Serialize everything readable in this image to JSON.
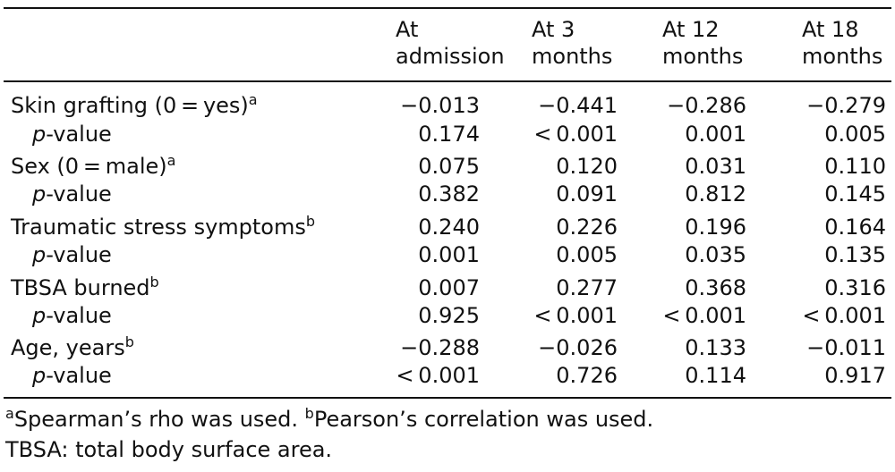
{
  "headers": [
    [
      "At",
      "admission"
    ],
    [
      "At 3",
      "months"
    ],
    [
      "At 12",
      "months"
    ],
    [
      "At 18",
      "months"
    ]
  ],
  "rows": [
    {
      "label": "Skin grafting (0 = yes)",
      "sup": "a",
      "values": [
        "−0.013",
        "−0.441",
        "−0.286",
        "−0.279"
      ]
    },
    {
      "label_italic": "p",
      "label_rest": "-value",
      "values": [
        "0.174",
        "< 0.001",
        "0.001",
        "0.005"
      ]
    },
    {
      "label": "Sex (0 = male)",
      "sup": "a",
      "values": [
        "0.075",
        "0.120",
        "0.031",
        "0.110"
      ]
    },
    {
      "label_italic": "p",
      "label_rest": "-value",
      "values": [
        "0.382",
        "0.091",
        "0.812",
        "0.145"
      ]
    },
    {
      "label": "Traumatic stress symptoms",
      "sup": "b",
      "values": [
        "0.240",
        "0.226",
        "0.196",
        "0.164"
      ]
    },
    {
      "label_italic": "p",
      "label_rest": "-value",
      "values": [
        "0.001",
        "0.005",
        "0.035",
        "0.135"
      ]
    },
    {
      "label": "TBSA burned",
      "sup": "b",
      "values": [
        "0.007",
        "0.277",
        "0.368",
        "0.316"
      ]
    },
    {
      "label_italic": "p",
      "label_rest": "-value",
      "values": [
        "0.925",
        "< 0.001",
        "< 0.001",
        "< 0.001"
      ]
    },
    {
      "label": "Age, years",
      "sup": "b",
      "values": [
        "−0.288",
        "−0.026",
        "0.133",
        "−0.011"
      ]
    },
    {
      "label_italic": "p",
      "label_rest": "-value",
      "values": [
        "< 0.001",
        "0.726",
        "0.114",
        "0.917"
      ]
    }
  ],
  "footnotes": {
    "a_mark": "a",
    "a_text": "Spearman’s rho was used. ",
    "b_mark": "b",
    "b_text": "Pearson’s correlation was used.",
    "abbrev": "TBSA: total body surface area."
  }
}
